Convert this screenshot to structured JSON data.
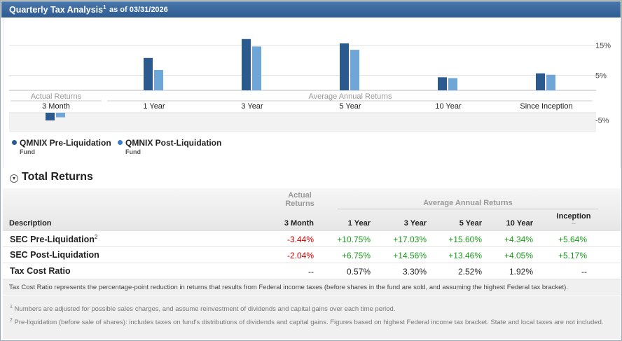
{
  "header": {
    "title": "Quarterly Tax Analysis",
    "title_sup": "1",
    "as_of": "as of 03/31/2026"
  },
  "chart_data": {
    "type": "bar",
    "categories": [
      "3 Month",
      "1 Year",
      "3 Year",
      "5 Year",
      "10 Year",
      "Since Inception"
    ],
    "group_labels": [
      "Actual Returns",
      "Average Annual Returns"
    ],
    "series": [
      {
        "name": "QMNIX Pre-Liquidation",
        "color": "#2b5a8f",
        "values": [
          -3.44,
          10.75,
          17.03,
          15.6,
          4.34,
          5.64
        ]
      },
      {
        "name": "QMNIX Post-Liquidation",
        "color": "#6ea6d8",
        "values": [
          -2.04,
          6.75,
          14.56,
          13.46,
          4.05,
          5.17
        ]
      }
    ],
    "y_ticks": [
      "15%",
      "5%",
      "-5%"
    ],
    "y_tick_values": [
      15,
      5,
      -5
    ],
    "ylim": [
      -7,
      20
    ],
    "legend": [
      {
        "label": "QMNIX Pre-Liquidation",
        "sub": "Fund",
        "color": "#2b5a8f"
      },
      {
        "label": "QMNIX Post-Liquidation",
        "sub": "Fund",
        "color": "#3a7ec6"
      }
    ]
  },
  "total_returns": {
    "title": "Total Returns",
    "headers": {
      "description": "Description",
      "actual_returns": "Actual Returns",
      "average_annual_returns": "Average Annual Returns",
      "inception": "Inception",
      "inception_sub": "--",
      "cols": [
        "3 Month",
        "1 Year",
        "3 Year",
        "5 Year",
        "10 Year"
      ]
    },
    "rows": [
      {
        "label": "SEC Pre-Liquidation",
        "sup": "2",
        "values": [
          "-3.44%",
          "+10.75%",
          "+17.03%",
          "+15.60%",
          "+4.34%",
          "+5.64%"
        ],
        "styles": [
          "neg",
          "pos",
          "pos",
          "pos",
          "pos",
          "pos"
        ]
      },
      {
        "label": "SEC Post-Liquidation",
        "sup": "",
        "values": [
          "-2.04%",
          "+6.75%",
          "+14.56%",
          "+13.46%",
          "+4.05%",
          "+5.17%"
        ],
        "styles": [
          "neg",
          "pos",
          "pos",
          "pos",
          "pos",
          "pos"
        ]
      },
      {
        "label": "Tax Cost Ratio",
        "sup": "",
        "values": [
          "--",
          "0.57%",
          "3.30%",
          "2.52%",
          "1.92%",
          "--"
        ],
        "styles": [
          "neu",
          "neu",
          "neu",
          "neu",
          "neu",
          "neu"
        ]
      }
    ],
    "note": "Tax Cost Ratio represents the percentage-point reduction in returns that results from Federal income taxes (before shares in the fund are sold, and assuming the highest Federal tax bracket)."
  },
  "footnotes": [
    {
      "num": "1",
      "text": "Numbers are adjusted for possible sales charges, and assume reinvestment of dividends and capital gains over each time period."
    },
    {
      "num": "2",
      "text": "Pre-liquidation (before sale of shares): includes taxes on fund's distributions of dividends and capital gains. Figures based on highest Federal income tax bracket. State and local taxes are not included."
    }
  ]
}
